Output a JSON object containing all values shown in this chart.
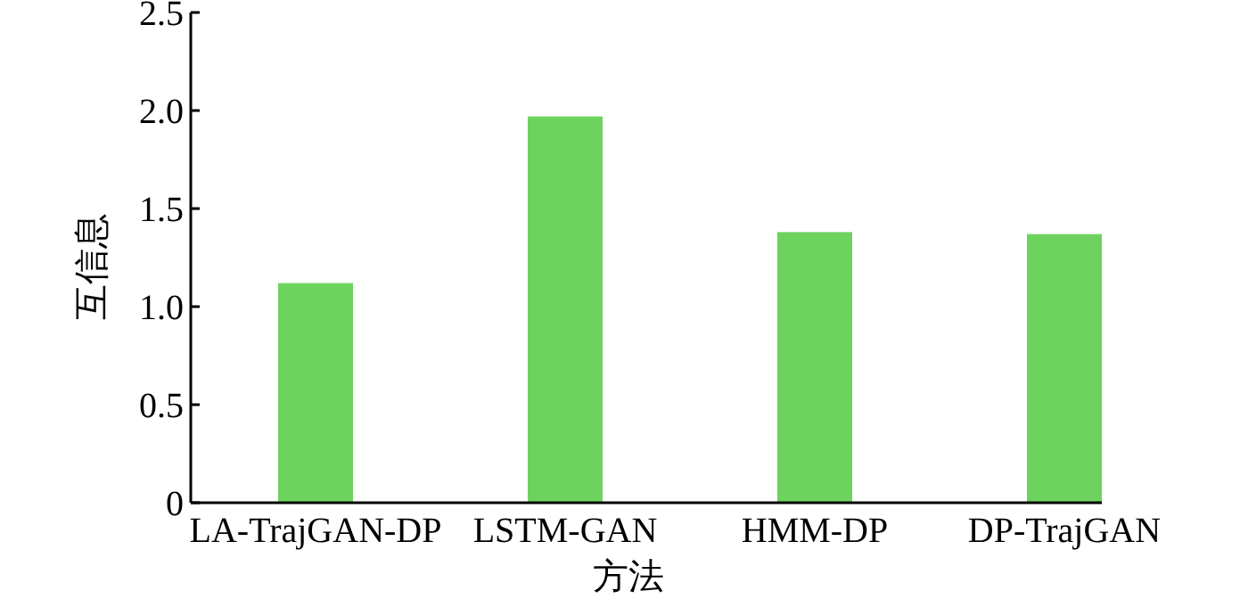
{
  "chart_data": {
    "type": "bar",
    "xlabel": "方法",
    "ylabel": "互信息",
    "categories": [
      "LA-TrajGAN-DP",
      "LSTM-GAN",
      "HMM-DP",
      "DP-TrajGAN"
    ],
    "values": [
      1.12,
      1.97,
      1.38,
      1.37
    ],
    "color": "#6dd35e",
    "ylim": [
      0,
      2.5
    ],
    "yticks": [
      {
        "value": 0,
        "label": "0"
      },
      0.5,
      {
        "value": 1,
        "label": "1.0"
      },
      1.5,
      {
        "value": 2,
        "label": "2.0"
      },
      2.5
    ],
    "grid": false
  }
}
